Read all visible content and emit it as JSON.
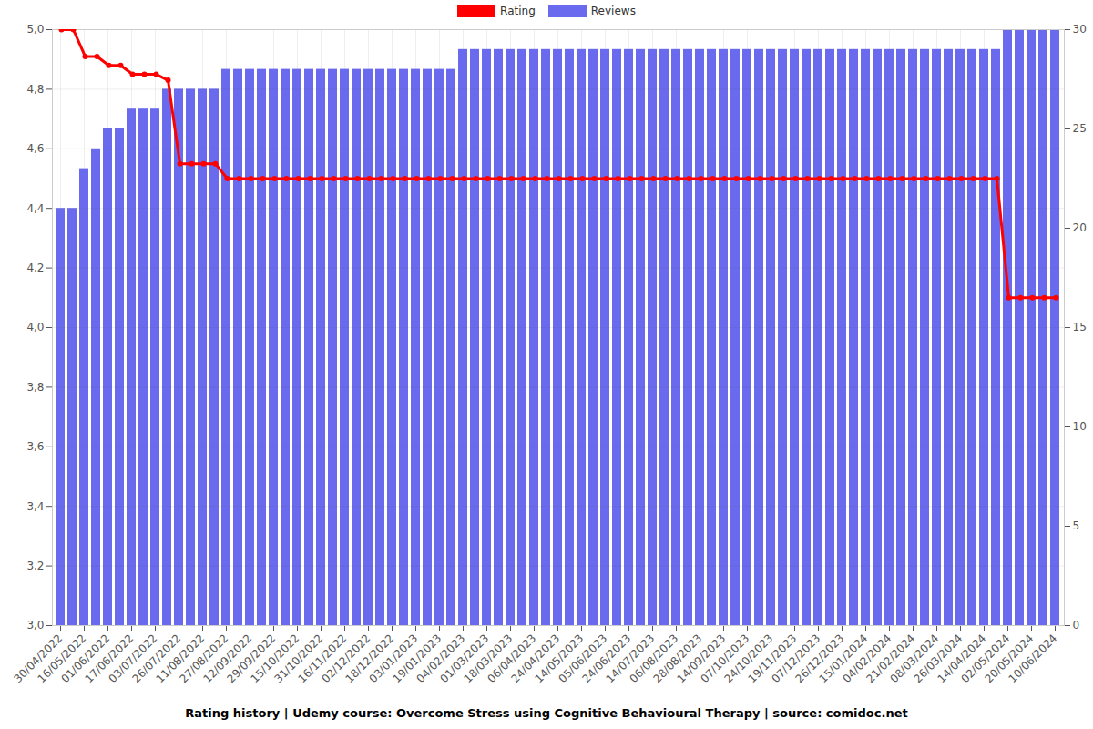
{
  "chart_data": {
    "type": "bar",
    "title": "Rating history | Udemy course: Overcome Stress using Cognitive Behavioural Therapy | source: comidoc.net",
    "categories": [
      "30/04/2022",
      null,
      "16/05/2022",
      null,
      "01/06/2022",
      null,
      "17/06/2022",
      null,
      "03/07/2022",
      null,
      "26/07/2022",
      null,
      "11/08/2022",
      null,
      "27/08/2022",
      null,
      "12/09/2022",
      null,
      "29/09/2022",
      null,
      "15/10/2022",
      null,
      "31/10/2022",
      null,
      "16/11/2022",
      null,
      "02/12/2022",
      null,
      "18/12/2022",
      null,
      "03/01/2023",
      null,
      "19/01/2023",
      null,
      "04/02/2023",
      null,
      "01/03/2023",
      null,
      "18/03/2023",
      null,
      "06/04/2023",
      null,
      "24/04/2023",
      null,
      "14/05/2023",
      null,
      "05/06/2023",
      null,
      "24/06/2023",
      null,
      "14/07/2023",
      null,
      "06/08/2023",
      null,
      "28/08/2023",
      null,
      "14/09/2023",
      null,
      "07/10/2023",
      null,
      "24/10/2023",
      null,
      "19/11/2023",
      null,
      "07/12/2023",
      null,
      "26/12/2023",
      null,
      "15/01/2024",
      null,
      "04/02/2024",
      null,
      "21/02/2024",
      null,
      "08/03/2024",
      null,
      "26/03/2024",
      null,
      "14/04/2024",
      null,
      "02/05/2024",
      null,
      "20/05/2024",
      null,
      "10/06/2024"
    ],
    "series": [
      {
        "name": "Rating",
        "type": "line",
        "color": "#ff0000",
        "marker": "circle",
        "values": [
          5.0,
          5.0,
          4.91,
          4.91,
          4.88,
          4.88,
          4.85,
          4.85,
          4.85,
          4.83,
          4.55,
          4.55,
          4.55,
          4.55,
          4.5,
          4.5,
          4.5,
          4.5,
          4.5,
          4.5,
          4.5,
          4.5,
          4.5,
          4.5,
          4.5,
          4.5,
          4.5,
          4.5,
          4.5,
          4.5,
          4.5,
          4.5,
          4.5,
          4.5,
          4.5,
          4.5,
          4.5,
          4.5,
          4.5,
          4.5,
          4.5,
          4.5,
          4.5,
          4.5,
          4.5,
          4.5,
          4.5,
          4.5,
          4.5,
          4.5,
          4.5,
          4.5,
          4.5,
          4.5,
          4.5,
          4.5,
          4.5,
          4.5,
          4.5,
          4.5,
          4.5,
          4.5,
          4.5,
          4.5,
          4.5,
          4.5,
          4.5,
          4.5,
          4.5,
          4.5,
          4.5,
          4.5,
          4.5,
          4.5,
          4.5,
          4.5,
          4.5,
          4.5,
          4.5,
          4.5,
          4.1,
          4.1,
          4.1,
          4.1,
          4.1
        ]
      },
      {
        "name": "Reviews",
        "type": "bar",
        "color": "#6a6aee",
        "axis": "y2",
        "values": [
          21,
          21,
          23,
          24,
          25,
          25,
          26,
          26,
          26,
          27,
          27,
          27,
          27,
          27,
          28,
          28,
          28,
          28,
          28,
          28,
          28,
          28,
          28,
          28,
          28,
          28,
          28,
          28,
          28,
          28,
          28,
          28,
          28,
          28,
          29,
          29,
          29,
          29,
          29,
          29,
          29,
          29,
          29,
          29,
          29,
          29,
          29,
          29,
          29,
          29,
          29,
          29,
          29,
          29,
          29,
          29,
          29,
          29,
          29,
          29,
          29,
          29,
          29,
          29,
          29,
          29,
          29,
          29,
          29,
          29,
          29,
          29,
          29,
          29,
          29,
          29,
          29,
          29,
          29,
          29,
          30,
          30,
          30,
          30,
          30
        ]
      }
    ],
    "ylim": [
      3,
      5
    ],
    "yticks": [
      {
        "value": 3.0,
        "label": "3,0"
      },
      {
        "value": 3.2,
        "label": "3,2"
      },
      {
        "value": 3.4,
        "label": "3,4"
      },
      {
        "value": 3.6,
        "label": "3,6"
      },
      {
        "value": 3.8,
        "label": "3,8"
      },
      {
        "value": 4.0,
        "label": "4,0"
      },
      {
        "value": 4.2,
        "label": "4,2"
      },
      {
        "value": 4.4,
        "label": "4,4"
      },
      {
        "value": 4.6,
        "label": "4,6"
      },
      {
        "value": 4.8,
        "label": "4,8"
      },
      {
        "value": 5.0,
        "label": "5,0"
      }
    ],
    "y2lim": [
      0,
      30
    ],
    "y2ticks": [
      0,
      5,
      10,
      15,
      20,
      25,
      30
    ],
    "grid": true,
    "legend": "top"
  }
}
